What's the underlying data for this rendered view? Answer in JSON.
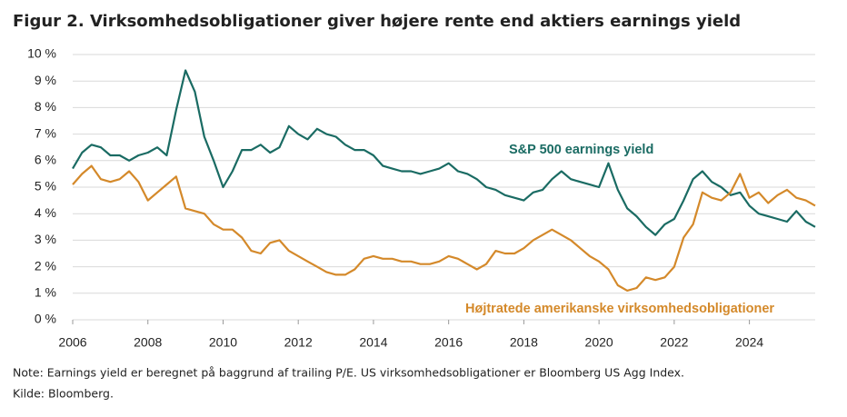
{
  "chart_data": {
    "type": "line",
    "title": "Figur 2. Virksomhedsobligationer giver højere rente end aktiers earnings yield",
    "note": "Note: Earnings yield er beregnet på baggrund af trailing P/E. US virksomhedsobligationer er Bloomberg US Agg Index.",
    "source": "Kilde: Bloomberg.",
    "x": [
      2006,
      2006.25,
      2006.5,
      2006.75,
      2007,
      2007.25,
      2007.5,
      2007.75,
      2008,
      2008.25,
      2008.5,
      2008.75,
      2009,
      2009.25,
      2009.5,
      2009.75,
      2010,
      2010.25,
      2010.5,
      2010.75,
      2011,
      2011.25,
      2011.5,
      2011.75,
      2012,
      2012.25,
      2012.5,
      2012.75,
      2013,
      2013.25,
      2013.5,
      2013.75,
      2014,
      2014.25,
      2014.5,
      2014.75,
      2015,
      2015.25,
      2015.5,
      2015.75,
      2016,
      2016.25,
      2016.5,
      2016.75,
      2017,
      2017.25,
      2017.5,
      2017.75,
      2018,
      2018.25,
      2018.5,
      2018.75,
      2019,
      2019.25,
      2019.5,
      2019.75,
      2020,
      2020.25,
      2020.5,
      2020.75,
      2021,
      2021.25,
      2021.5,
      2021.75,
      2022,
      2022.25,
      2022.5,
      2022.75,
      2023,
      2023.25,
      2023.5,
      2023.75,
      2024,
      2024.25,
      2024.5,
      2024.75,
      2025,
      2025.25,
      2025.5,
      2025.75
    ],
    "series": [
      {
        "name": "S&P 500 earnings yield",
        "color": "#1a6b63",
        "values": [
          5.7,
          6.3,
          6.6,
          6.5,
          6.2,
          6.2,
          6.0,
          6.2,
          6.3,
          6.5,
          6.2,
          7.9,
          9.4,
          8.6,
          6.9,
          6.0,
          5.0,
          5.6,
          6.4,
          6.4,
          6.6,
          6.3,
          6.5,
          7.3,
          7.0,
          6.8,
          7.2,
          7.0,
          6.9,
          6.6,
          6.4,
          6.4,
          6.2,
          5.8,
          5.7,
          5.6,
          5.6,
          5.5,
          5.6,
          5.7,
          5.9,
          5.6,
          5.5,
          5.3,
          5.0,
          4.9,
          4.7,
          4.6,
          4.5,
          4.8,
          4.9,
          5.3,
          5.6,
          5.3,
          5.2,
          5.1,
          5.0,
          5.9,
          4.9,
          4.2,
          3.9,
          3.5,
          3.2,
          3.6,
          3.8,
          4.5,
          5.3,
          5.6,
          5.2,
          5.0,
          4.7,
          4.8,
          4.3,
          4.0,
          3.9,
          3.8,
          3.7,
          4.1,
          3.7,
          3.5
        ]
      },
      {
        "name": "Højtratede amerikanske virksomhedsobligationer",
        "color": "#d4892a",
        "values": [
          5.1,
          5.5,
          5.8,
          5.3,
          5.2,
          5.3,
          5.6,
          5.2,
          4.5,
          4.8,
          5.1,
          5.4,
          4.2,
          4.1,
          4.0,
          3.6,
          3.4,
          3.4,
          3.1,
          2.6,
          2.5,
          2.9,
          3.0,
          2.6,
          2.4,
          2.2,
          2.0,
          1.8,
          1.7,
          1.7,
          1.9,
          2.3,
          2.4,
          2.3,
          2.3,
          2.2,
          2.2,
          2.1,
          2.1,
          2.2,
          2.4,
          2.3,
          2.1,
          1.9,
          2.1,
          2.6,
          2.5,
          2.5,
          2.7,
          3.0,
          3.2,
          3.4,
          3.2,
          3.0,
          2.7,
          2.4,
          2.2,
          1.9,
          1.3,
          1.1,
          1.2,
          1.6,
          1.5,
          1.6,
          2.0,
          3.1,
          3.6,
          4.8,
          4.6,
          4.5,
          4.8,
          5.5,
          4.6,
          4.8,
          4.4,
          4.7,
          4.9,
          4.6,
          4.5,
          4.3
        ]
      }
    ],
    "xlim": [
      2006,
      2025.75
    ],
    "xticks": [
      2006,
      2008,
      2010,
      2012,
      2014,
      2016,
      2018,
      2020,
      2022,
      2024
    ],
    "ylim": [
      0,
      10
    ],
    "yticks": [
      {
        "value": 0,
        "label": "0 %"
      },
      {
        "value": 1,
        "label": "1 %"
      },
      {
        "value": 2,
        "label": "2 %"
      },
      {
        "value": 3,
        "label": "3 %"
      },
      {
        "value": 4,
        "label": "4 %"
      },
      {
        "value": 5,
        "label": "5 %"
      },
      {
        "value": 6,
        "label": "6 %"
      },
      {
        "value": 7,
        "label": "7 %"
      },
      {
        "value": 8,
        "label": "8 %"
      },
      {
        "value": 9,
        "label": "9 %"
      },
      {
        "value": 10,
        "label": "10 %"
      }
    ],
    "grid": true
  }
}
